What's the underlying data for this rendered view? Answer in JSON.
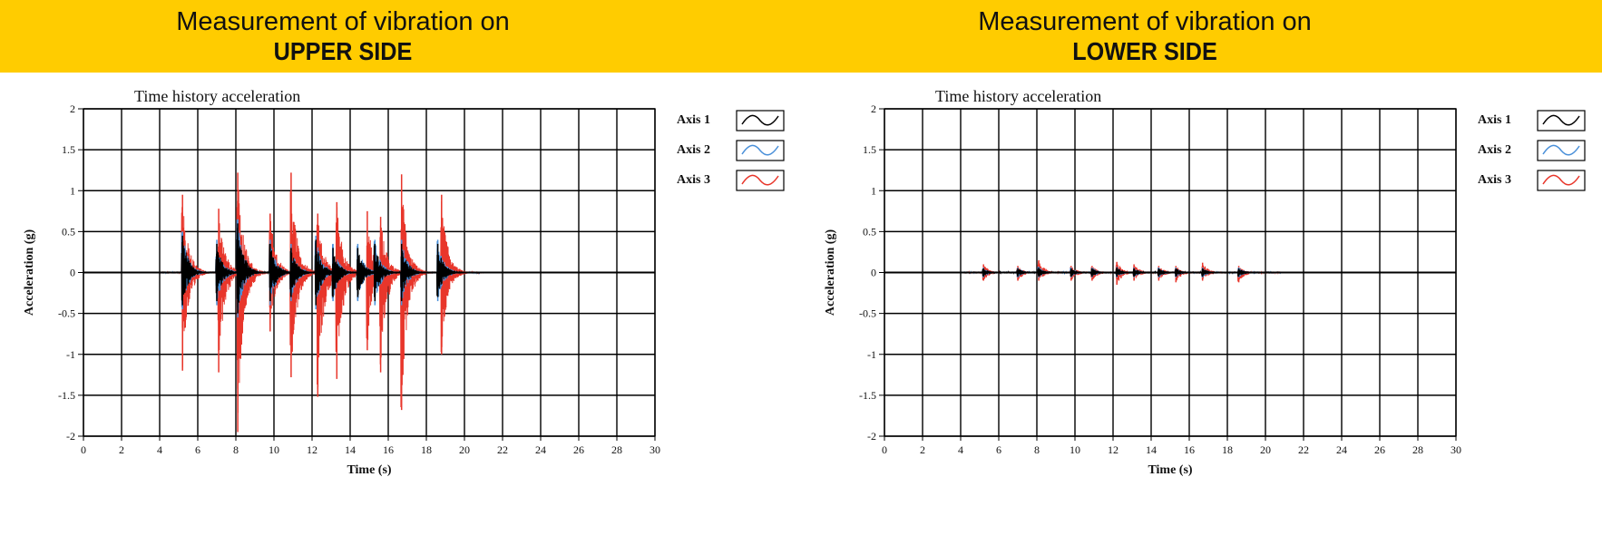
{
  "banner": {
    "left": {
      "line1": "Measurement of vibration on",
      "line2": "UPPER SIDE"
    },
    "right": {
      "line1": "Measurement of vibration on",
      "line2": "LOWER SIDE"
    }
  },
  "colors": {
    "banner": "#ffcc00",
    "axis1": "#000000",
    "axis2": "#4a90d9",
    "axis3": "#e8362b"
  },
  "chart_data": [
    {
      "type": "line",
      "title": "Time history acceleration",
      "xlabel": "Time (s)",
      "ylabel": "Acceleration (g)",
      "xlim": [
        0,
        30
      ],
      "ylim": [
        -2,
        2
      ],
      "xticks": [
        "0",
        "2",
        "4",
        "6",
        "8",
        "10",
        "12",
        "14",
        "16",
        "18",
        "20",
        "22",
        "24",
        "26",
        "28",
        "30"
      ],
      "yticks": [
        "2",
        "1.5",
        "1",
        "0.5",
        "0",
        "-0.5",
        "-1",
        "-1.5",
        "-2"
      ],
      "grid": true,
      "legend_position": "right",
      "series": [
        {
          "name": "Axis 1",
          "color": "#000000",
          "bursts": [
            [
              5.2,
              0.45,
              -0.4
            ],
            [
              7.0,
              0.35,
              -0.35
            ],
            [
              8.1,
              0.6,
              -0.5
            ],
            [
              9.8,
              0.35,
              -0.35
            ],
            [
              10.9,
              0.3,
              -0.3
            ],
            [
              12.2,
              0.4,
              -0.4
            ],
            [
              13.1,
              0.3,
              -0.3
            ],
            [
              14.4,
              0.3,
              -0.3
            ],
            [
              15.3,
              0.35,
              -0.35
            ],
            [
              16.7,
              0.35,
              -0.35
            ],
            [
              18.6,
              0.35,
              -0.3
            ]
          ]
        },
        {
          "name": "Axis 2",
          "color": "#4a90d9",
          "bursts": [
            [
              5.2,
              0.5,
              -0.45
            ],
            [
              7.0,
              0.4,
              -0.4
            ],
            [
              8.1,
              0.65,
              -0.55
            ],
            [
              9.8,
              0.4,
              -0.4
            ],
            [
              10.9,
              0.35,
              -0.35
            ],
            [
              12.2,
              0.45,
              -0.45
            ],
            [
              13.1,
              0.35,
              -0.35
            ],
            [
              14.4,
              0.35,
              -0.35
            ],
            [
              15.3,
              0.4,
              -0.4
            ],
            [
              16.7,
              0.4,
              -0.4
            ],
            [
              18.6,
              0.4,
              -0.35
            ]
          ]
        },
        {
          "name": "Axis 3",
          "color": "#e8362b",
          "bursts": [
            [
              5.2,
              0.95,
              -1.2
            ],
            [
              7.1,
              0.78,
              -1.22
            ],
            [
              8.1,
              1.22,
              -1.95
            ],
            [
              9.8,
              0.72,
              -0.72
            ],
            [
              10.9,
              1.22,
              -1.28
            ],
            [
              12.3,
              0.72,
              -1.52
            ],
            [
              13.3,
              0.86,
              -1.3
            ],
            [
              14.9,
              0.75,
              -0.95
            ],
            [
              15.6,
              0.68,
              -1.22
            ],
            [
              16.7,
              1.2,
              -1.68
            ],
            [
              18.8,
              0.95,
              -1.0
            ]
          ]
        }
      ]
    },
    {
      "type": "line",
      "title": "Time history acceleration",
      "xlabel": "Time (s)",
      "ylabel": "Acceleration (g)",
      "xlim": [
        0,
        30
      ],
      "ylim": [
        -2,
        2
      ],
      "xticks": [
        "0",
        "2",
        "4",
        "6",
        "8",
        "10",
        "12",
        "14",
        "16",
        "18",
        "20",
        "22",
        "24",
        "26",
        "28",
        "30"
      ],
      "yticks": [
        "2",
        "1.5",
        "1",
        "0.5",
        "0",
        "-0.5",
        "-1",
        "-1.5",
        "-2"
      ],
      "grid": true,
      "legend_position": "right",
      "series": [
        {
          "name": "Axis 1",
          "color": "#000000",
          "bursts": [
            [
              5.2,
              0.05,
              -0.05
            ],
            [
              7.0,
              0.05,
              -0.05
            ],
            [
              8.1,
              0.06,
              -0.05
            ],
            [
              9.8,
              0.05,
              -0.05
            ],
            [
              10.9,
              0.05,
              -0.05
            ],
            [
              12.2,
              0.06,
              -0.05
            ],
            [
              13.1,
              0.05,
              -0.05
            ],
            [
              14.4,
              0.05,
              -0.05
            ],
            [
              15.3,
              0.05,
              -0.05
            ],
            [
              16.7,
              0.05,
              -0.05
            ],
            [
              18.6,
              0.05,
              -0.05
            ]
          ]
        },
        {
          "name": "Axis 2",
          "color": "#4a90d9",
          "bursts": [
            [
              5.2,
              0.06,
              -0.06
            ],
            [
              7.0,
              0.06,
              -0.06
            ],
            [
              8.1,
              0.07,
              -0.06
            ],
            [
              9.8,
              0.06,
              -0.06
            ],
            [
              10.9,
              0.06,
              -0.06
            ],
            [
              12.2,
              0.07,
              -0.06
            ],
            [
              13.1,
              0.06,
              -0.06
            ],
            [
              14.4,
              0.06,
              -0.06
            ],
            [
              15.3,
              0.06,
              -0.06
            ],
            [
              16.7,
              0.06,
              -0.06
            ],
            [
              18.6,
              0.06,
              -0.06
            ]
          ]
        },
        {
          "name": "Axis 3",
          "color": "#e8362b",
          "bursts": [
            [
              5.2,
              0.1,
              -0.1
            ],
            [
              7.0,
              0.08,
              -0.1
            ],
            [
              8.1,
              0.15,
              -0.1
            ],
            [
              9.8,
              0.08,
              -0.1
            ],
            [
              10.9,
              0.08,
              -0.1
            ],
            [
              12.2,
              0.13,
              -0.15
            ],
            [
              13.1,
              0.1,
              -0.1
            ],
            [
              14.4,
              0.08,
              -0.1
            ],
            [
              15.3,
              0.08,
              -0.12
            ],
            [
              16.7,
              0.12,
              -0.1
            ],
            [
              18.6,
              0.08,
              -0.12
            ]
          ]
        }
      ]
    }
  ]
}
